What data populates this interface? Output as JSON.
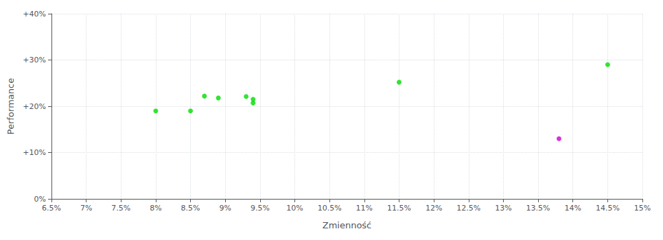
{
  "chart_data": {
    "type": "scatter",
    "xlabel": "Zmienność",
    "ylabel": "Performance",
    "xlim": [
      0.065,
      0.15
    ],
    "ylim": [
      0.0,
      0.4
    ],
    "xticks": [
      {
        "value": 0.065,
        "label": "6.5%"
      },
      {
        "value": 0.07,
        "label": "7%"
      },
      {
        "value": 0.075,
        "label": "7.5%"
      },
      {
        "value": 0.08,
        "label": "8%"
      },
      {
        "value": 0.085,
        "label": "8.5%"
      },
      {
        "value": 0.09,
        "label": "9%"
      },
      {
        "value": 0.095,
        "label": "9.5%"
      },
      {
        "value": 0.1,
        "label": "10%"
      },
      {
        "value": 0.105,
        "label": "10.5%"
      },
      {
        "value": 0.11,
        "label": "11%"
      },
      {
        "value": 0.115,
        "label": "11.5%"
      },
      {
        "value": 0.12,
        "label": "12%"
      },
      {
        "value": 0.125,
        "label": "12.5%"
      },
      {
        "value": 0.13,
        "label": "13%"
      },
      {
        "value": 0.135,
        "label": "13.5%"
      },
      {
        "value": 0.14,
        "label": "14%"
      },
      {
        "value": 0.145,
        "label": "14.5%"
      },
      {
        "value": 0.15,
        "label": "15%"
      }
    ],
    "yticks": [
      {
        "value": 0.0,
        "label": "0%"
      },
      {
        "value": 0.1,
        "label": "+10%"
      },
      {
        "value": 0.2,
        "label": "+20%"
      },
      {
        "value": 0.3,
        "label": "+30%"
      },
      {
        "value": 0.4,
        "label": "+40%"
      }
    ],
    "grid": true,
    "series": [
      {
        "color": "#00dd00",
        "x": [
          0.08,
          0.085,
          0.087,
          0.089,
          0.093,
          0.094,
          0.094,
          0.115,
          0.145
        ],
        "values": [
          0.19,
          0.19,
          0.222,
          0.218,
          0.221,
          0.215,
          0.207,
          0.252,
          0.29
        ]
      },
      {
        "color": "#cc00cc",
        "x": [
          0.138
        ],
        "values": [
          0.13
        ]
      }
    ]
  }
}
